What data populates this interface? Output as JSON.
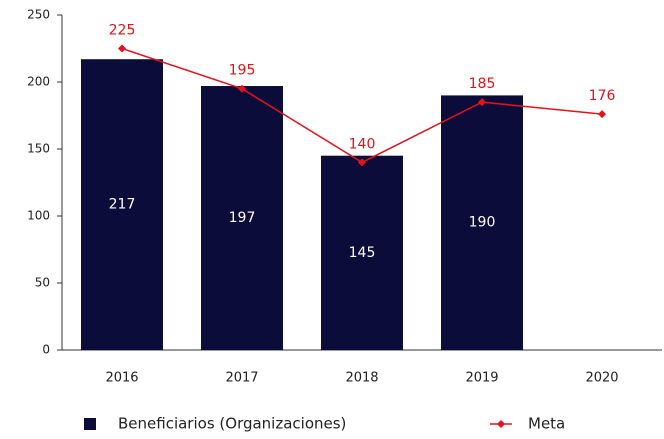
{
  "chart_data": {
    "type": "bar",
    "categories": [
      "2016",
      "2017",
      "2018",
      "2019",
      "2020"
    ],
    "series": [
      {
        "name": "Beneficiarios (Organizaciones)",
        "type": "bar",
        "color": "#0c0c3a",
        "values": [
          217,
          197,
          145,
          190,
          null
        ]
      },
      {
        "name": "Meta",
        "type": "line",
        "color": "#e8101a",
        "values": [
          225,
          195,
          140,
          185,
          176
        ]
      }
    ],
    "ylim": [
      0,
      250
    ],
    "yticks": [
      0,
      50,
      100,
      150,
      200,
      250
    ],
    "legend": "bottom"
  }
}
